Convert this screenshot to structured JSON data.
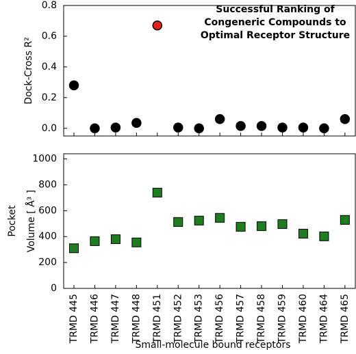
{
  "chart_data": [
    {
      "type": "scatter",
      "title": [
        "Successful Ranking of",
        "Congeneric Compounds to",
        "Optimal Receptor Structure"
      ],
      "y_label": "Dock-Cross R²",
      "values": [
        0.28,
        0.0,
        0.005,
        0.035,
        0.67,
        0.005,
        0.0,
        0.06,
        0.015,
        0.015,
        0.005,
        0.005,
        0.0,
        0.06
      ],
      "point_colors": [
        "#000000",
        "#000000",
        "#000000",
        "#000000",
        "#e8201a",
        "#000000",
        "#000000",
        "#000000",
        "#000000",
        "#000000",
        "#000000",
        "#000000",
        "#000000",
        "#000000"
      ],
      "marker": "circle",
      "ylim": [
        -0.05,
        0.8
      ],
      "yticks": [
        {
          "value": 0,
          "label": "0.0"
        },
        0.2,
        0.4,
        0.6,
        0.8
      ]
    },
    {
      "type": "scatter",
      "y_label": [
        "Pocket",
        "Volume [ Å³ ]"
      ],
      "x_label": "Small-molecule bound receptors",
      "categories": [
        "TRMD 445",
        "TRMD 446",
        "TRMD 447",
        "TRMD 448",
        "TRMD 451",
        "TRMD 452",
        "TRMD 453",
        "TRMD 456",
        "TRMD 457",
        "TRMD 458",
        "TRMD 459",
        "TRMD 460",
        "TRMD 464",
        "TRMD 465"
      ],
      "values": [
        310,
        365,
        380,
        355,
        740,
        513,
        524,
        545,
        476,
        481,
        497,
        423,
        402,
        529
      ],
      "color": "#1e7d1e",
      "marker": "square",
      "ylim": [
        0,
        1040
      ],
      "yticks": [
        0,
        200,
        400,
        600,
        800,
        1000
      ]
    }
  ]
}
